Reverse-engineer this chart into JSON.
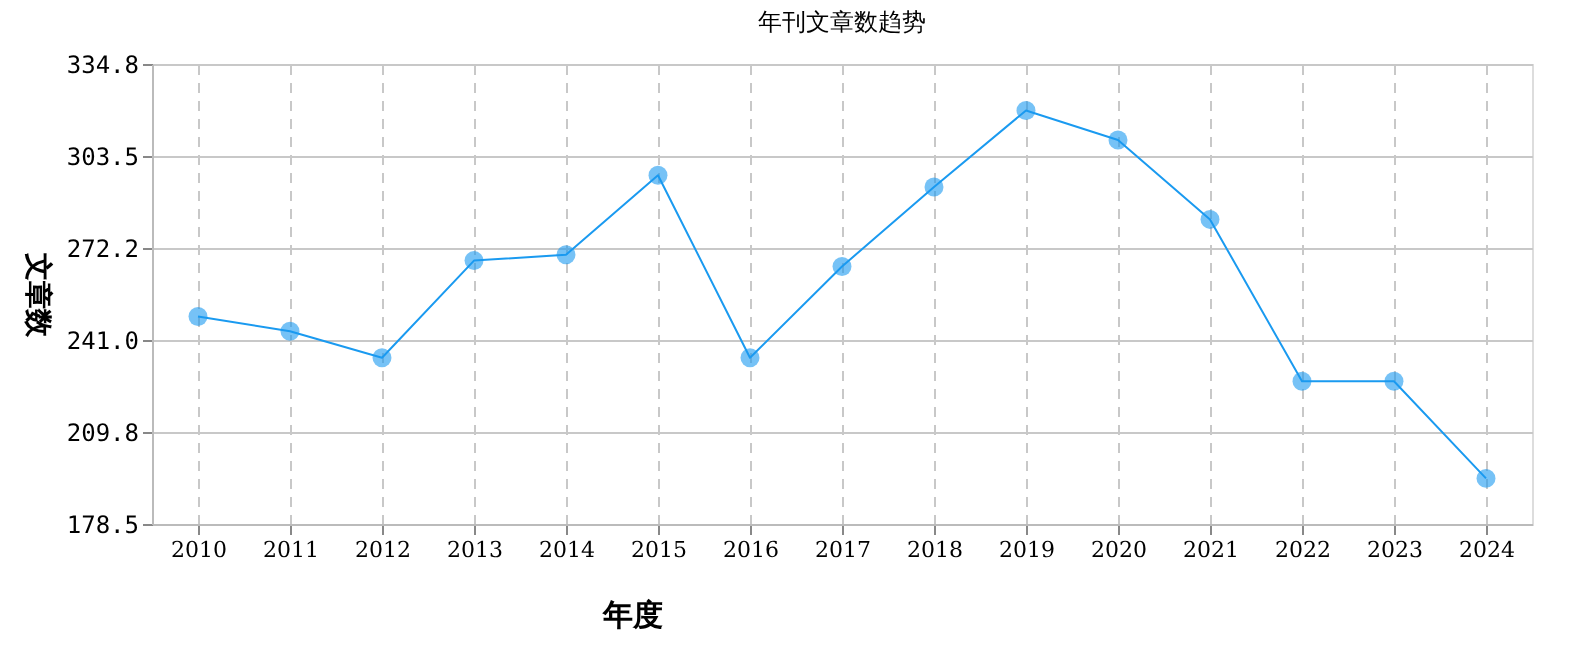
{
  "chart_data": {
    "type": "line",
    "title": "年刊文章数趋势",
    "xlabel": "年度",
    "ylabel": "文章数",
    "categories": [
      "2010",
      "2011",
      "2012",
      "2013",
      "2014",
      "2015",
      "2016",
      "2017",
      "2018",
      "2019",
      "2020",
      "2021",
      "2022",
      "2023",
      "2024"
    ],
    "series": [
      {
        "color": "#1a9af0",
        "values": [
          249,
          244,
          235,
          268,
          270,
          297,
          235,
          266,
          293,
          319,
          309,
          282,
          227,
          227,
          194
        ]
      }
    ],
    "ylim": [
      178.5,
      334.8
    ],
    "yticks": [
      178.5,
      209.8,
      {
        "value": 241,
        "label": "241.0"
      },
      272.2,
      303.5,
      334.8
    ],
    "grid": true,
    "marker": "circle",
    "line_style": "solid"
  }
}
